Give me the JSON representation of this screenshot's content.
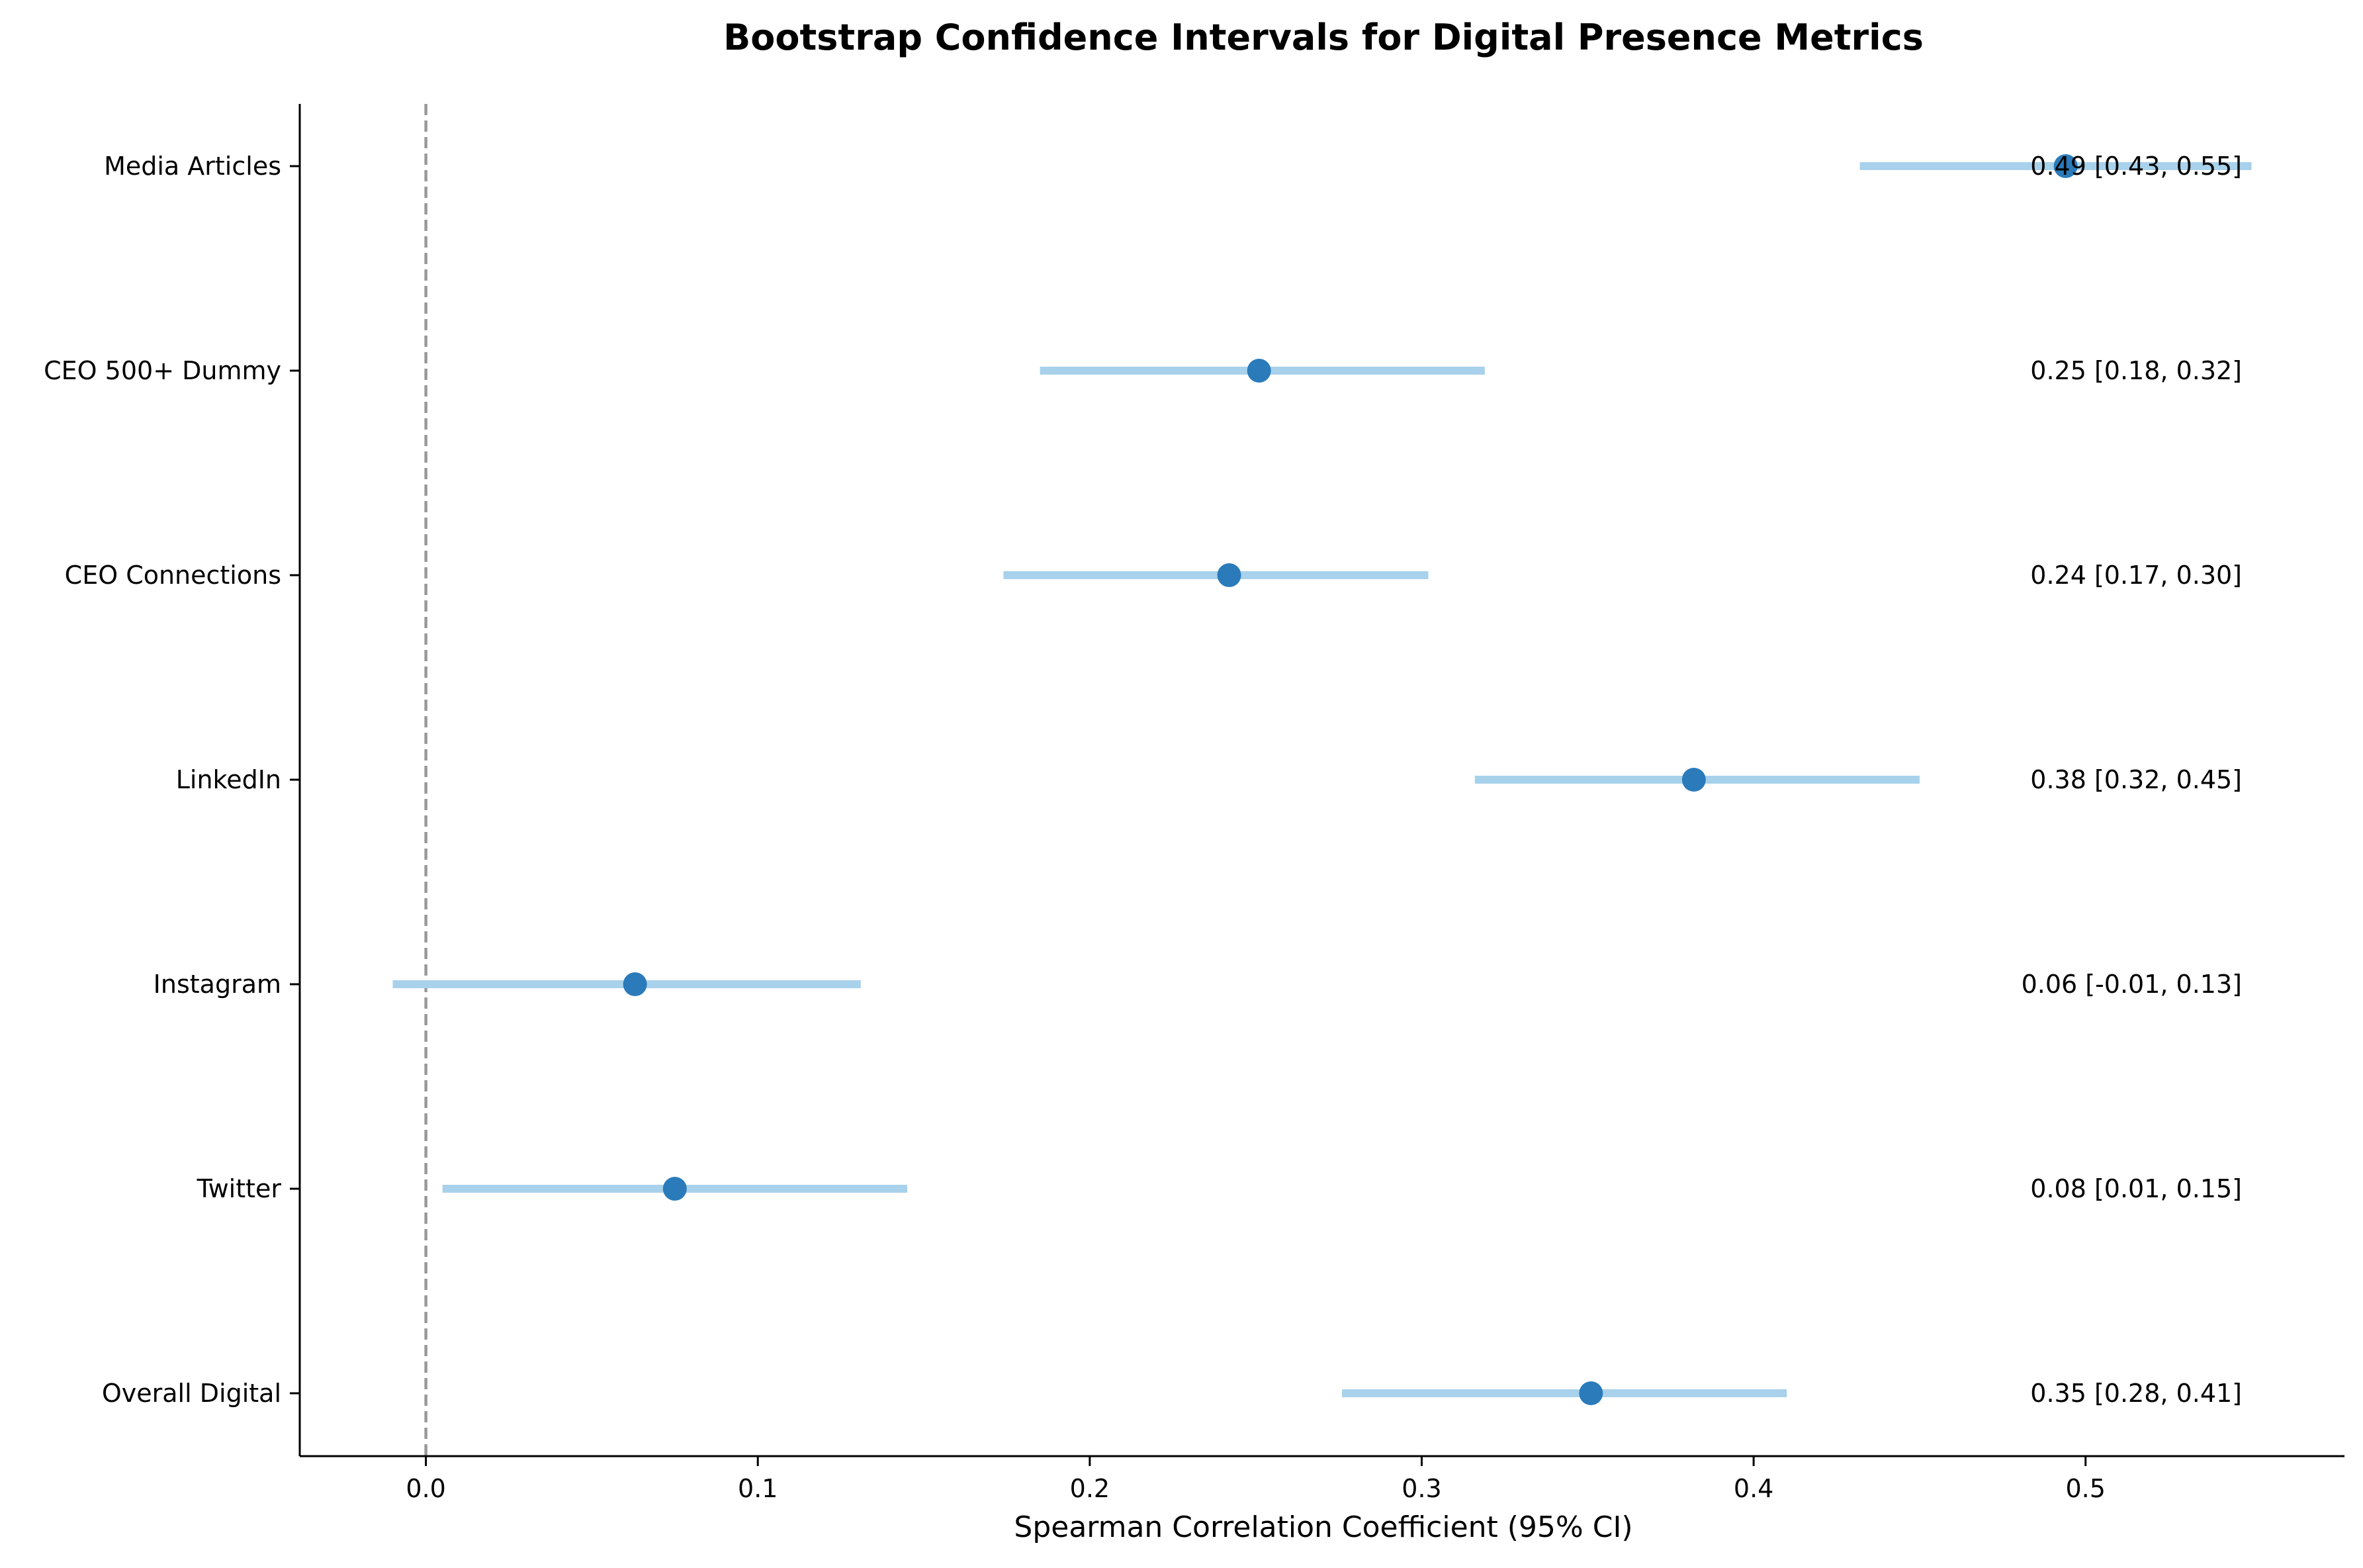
{
  "chart_data": {
    "type": "scatter",
    "title": "Bootstrap Confidence Intervals for Digital Presence Metrics",
    "xlabel": "Spearman Correlation Coefficient (95% CI)",
    "ylabel": "",
    "xlim": [
      -0.038,
      0.578
    ],
    "xticks": [
      0.0,
      0.1,
      0.2,
      0.3,
      0.4,
      0.5
    ],
    "xtick_labels": [
      "0.0",
      "0.1",
      "0.2",
      "0.3",
      "0.4",
      "0.5"
    ],
    "reference_line": {
      "x": 0.0,
      "style": "dashed",
      "color": "#999999"
    },
    "grid": false,
    "legend": "none",
    "colors": {
      "point": "#2b7bba",
      "interval": "#a8d1ec"
    },
    "metrics": [
      {
        "name": "Media Articles",
        "estimate": 0.494,
        "ci_low": 0.432,
        "ci_high": 0.55,
        "label": "0.49 [0.43, 0.55]"
      },
      {
        "name": "CEO 500+ Dummy",
        "estimate": 0.251,
        "ci_low": 0.185,
        "ci_high": 0.319,
        "label": "0.25 [0.18, 0.32]"
      },
      {
        "name": "CEO Connections",
        "estimate": 0.242,
        "ci_low": 0.174,
        "ci_high": 0.302,
        "label": "0.24 [0.17, 0.30]"
      },
      {
        "name": "LinkedIn",
        "estimate": 0.382,
        "ci_low": 0.316,
        "ci_high": 0.45,
        "label": "0.38 [0.32, 0.45]"
      },
      {
        "name": "Instagram",
        "estimate": 0.063,
        "ci_low": -0.01,
        "ci_high": 0.131,
        "label": "0.06 [-0.01, 0.13]"
      },
      {
        "name": "Twitter",
        "estimate": 0.075,
        "ci_low": 0.005,
        "ci_high": 0.145,
        "label": "0.08 [0.01, 0.15]"
      },
      {
        "name": "Overall Digital",
        "estimate": 0.351,
        "ci_low": 0.276,
        "ci_high": 0.41,
        "label": "0.35 [0.28, 0.41]"
      }
    ]
  }
}
